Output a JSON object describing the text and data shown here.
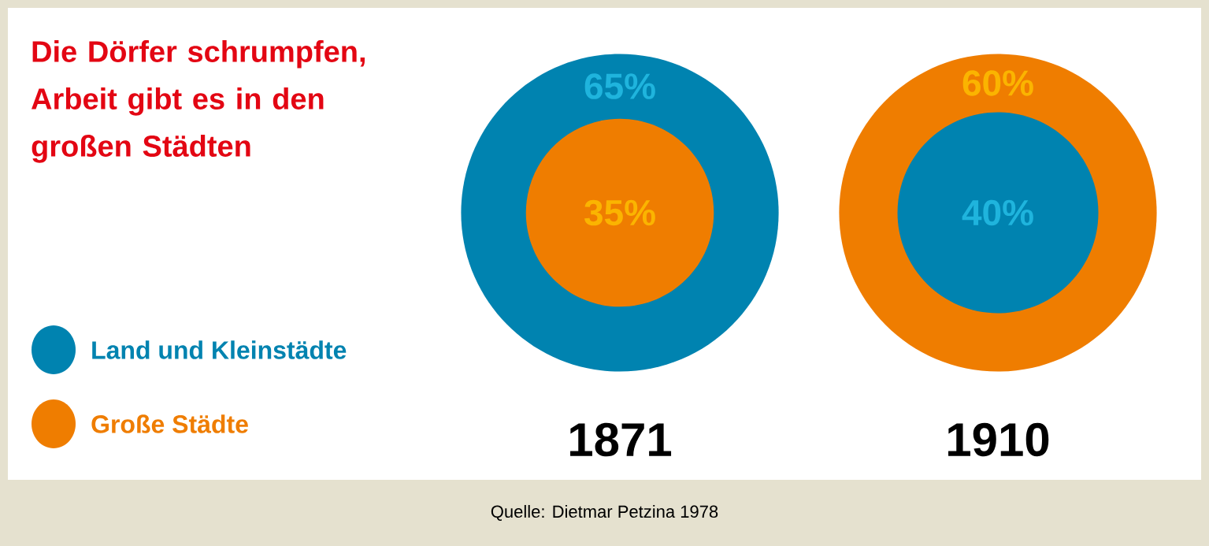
{
  "chart_data": {
    "type": "other",
    "title": "Die Dörfer schrumpfen, Arbeit gibt es in den großen Städten",
    "categories": [
      "1871",
      "1910"
    ],
    "series": [
      {
        "name": "Land und Kleinstädte",
        "color": "#0083b0",
        "values": [
          65,
          40
        ],
        "value_labels": [
          "65%",
          "40%"
        ]
      },
      {
        "name": "Große Städte",
        "color": "#ef7d00",
        "values": [
          35,
          60
        ],
        "value_labels": [
          "35%",
          "60%"
        ]
      }
    ],
    "legend": "left",
    "annotations": [
      "Quelle: Dietmar Petzina 1978"
    ]
  }
}
